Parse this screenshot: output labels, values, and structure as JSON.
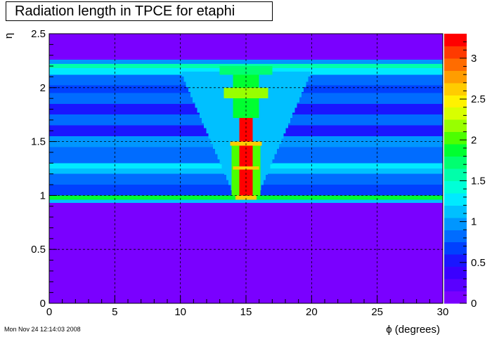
{
  "chart_data": {
    "type": "heatmap",
    "title": "Radiation length in TPCE for etaphi",
    "xlabel": "ϕ (degrees)",
    "ylabel": "η",
    "xlim": [
      0,
      30
    ],
    "ylim": [
      0,
      2.5
    ],
    "x_ticks": [
      "0",
      "5",
      "10",
      "15",
      "20",
      "25",
      "30"
    ],
    "y_ticks": [
      "0",
      "0.5",
      "1",
      "1.5",
      "2",
      "2.5"
    ],
    "z_ticks": [
      "0",
      "0.5",
      "1",
      "1.5",
      "2",
      "2.5",
      "3"
    ],
    "zlim": [
      0,
      3.3
    ],
    "grid": true,
    "colorbar_position": "right",
    "palette": [
      "#7a00ff",
      "#5a00ff",
      "#3a00ff",
      "#1a16ff",
      "#0040ff",
      "#006cff",
      "#0096ff",
      "#00c0ff",
      "#00eaff",
      "#00ffd8",
      "#00ffaa",
      "#00ff70",
      "#00ff30",
      "#4cff00",
      "#98ff00",
      "#d8ff00",
      "#fff200",
      "#ffcc00",
      "#ff9d00",
      "#ff6c00",
      "#ff3a00",
      "#ff0000"
    ],
    "eta_bins": [
      {
        "eta_min": 0.0,
        "eta_max": 0.93,
        "z": 0.05
      },
      {
        "eta_min": 0.93,
        "eta_max": 0.96,
        "z": 1.1
      },
      {
        "eta_min": 0.96,
        "eta_max": 1.0,
        "z": 1.9
      },
      {
        "eta_min": 1.0,
        "eta_max": 1.1,
        "z": 0.65
      },
      {
        "eta_min": 1.1,
        "eta_max": 1.2,
        "z": 0.8
      },
      {
        "eta_min": 1.2,
        "eta_max": 1.25,
        "z": 1.05
      },
      {
        "eta_min": 1.25,
        "eta_max": 1.3,
        "z": 1.25
      },
      {
        "eta_min": 1.3,
        "eta_max": 1.45,
        "z": 0.75
      },
      {
        "eta_min": 1.45,
        "eta_max": 1.55,
        "z": 0.95
      },
      {
        "eta_min": 1.55,
        "eta_max": 1.65,
        "z": 0.55
      },
      {
        "eta_min": 1.65,
        "eta_max": 1.75,
        "z": 0.75
      },
      {
        "eta_min": 1.75,
        "eta_max": 1.85,
        "z": 0.55
      },
      {
        "eta_min": 1.85,
        "eta_max": 1.95,
        "z": 0.8
      },
      {
        "eta_min": 1.95,
        "eta_max": 2.02,
        "z": 0.6
      },
      {
        "eta_min": 2.02,
        "eta_max": 2.12,
        "z": 0.85
      },
      {
        "eta_min": 2.12,
        "eta_max": 2.18,
        "z": 1.25
      },
      {
        "eta_min": 2.18,
        "eta_max": 2.22,
        "z": 1.55
      },
      {
        "eta_min": 2.22,
        "eta_max": 2.26,
        "z": 0.9
      },
      {
        "eta_min": 2.26,
        "eta_max": 2.5,
        "z": 0.05
      }
    ],
    "central_region": {
      "phi_center": 15,
      "cone_base": {
        "eta": 1.0,
        "half_width_phi": 0.9
      },
      "cone_top": {
        "eta": 2.15,
        "half_width_phi": 5.0
      },
      "cone_z": 1.15,
      "cells": [
        {
          "phi_min": 14.5,
          "phi_max": 15.5,
          "eta_min": 0.96,
          "eta_max": 1.72,
          "z": 3.2
        },
        {
          "phi_min": 13.9,
          "phi_max": 14.5,
          "eta_min": 1.0,
          "eta_max": 1.5,
          "z": 2.0
        },
        {
          "phi_min": 15.5,
          "phi_max": 16.1,
          "eta_min": 1.0,
          "eta_max": 1.5,
          "z": 2.0
        },
        {
          "phi_min": 13.8,
          "phi_max": 16.2,
          "eta_min": 1.46,
          "eta_max": 1.5,
          "z": 2.6
        },
        {
          "phi_min": 14.0,
          "phi_max": 16.0,
          "eta_min": 1.24,
          "eta_max": 1.27,
          "z": 2.6
        },
        {
          "phi_min": 14.2,
          "phi_max": 15.8,
          "eta_min": 0.96,
          "eta_max": 1.0,
          "z": 2.6
        },
        {
          "phi_min": 14.0,
          "phi_max": 16.0,
          "eta_min": 1.72,
          "eta_max": 2.12,
          "z": 1.9
        },
        {
          "phi_min": 13.3,
          "phi_max": 16.7,
          "eta_min": 1.9,
          "eta_max": 2.0,
          "z": 2.1
        },
        {
          "phi_min": 13.0,
          "phi_max": 17.0,
          "eta_min": 2.12,
          "eta_max": 2.2,
          "z": 1.7
        }
      ]
    }
  },
  "timestamp": "Mon Nov 24 12:14:03 2008"
}
